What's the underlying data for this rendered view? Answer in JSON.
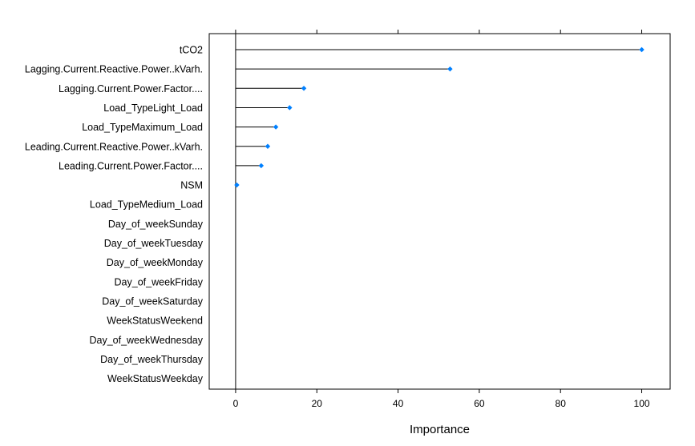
{
  "chart_data": {
    "type": "dot",
    "xlabel": "Importance",
    "xlim": [
      -6.5,
      107
    ],
    "xticks": [
      0,
      20,
      40,
      60,
      80,
      100
    ],
    "xtick_labels": [
      "0",
      "20",
      "40",
      "60",
      "80",
      "100"
    ],
    "colors": {
      "point": "#0080ff",
      "line": "#000000",
      "frame": "#000000"
    },
    "categories": [
      "tCO2",
      "Lagging.Current.Reactive.Power..kVarh.",
      "Lagging.Current.Power.Factor....",
      "Load_TypeLight_Load",
      "Load_TypeMaximum_Load",
      "Leading.Current.Reactive.Power..kVarh.",
      "Leading.Current.Power.Factor....",
      "NSM",
      "Load_TypeMedium_Load",
      "Day_of_weekSunday",
      "Day_of_weekTuesday",
      "Day_of_weekMonday",
      "Day_of_weekFriday",
      "Day_of_weekSaturday",
      "WeekStatusWeekend",
      "Day_of_weekWednesday",
      "Day_of_weekThursday",
      "WeekStatusWeekday"
    ],
    "values": [
      100,
      52.8,
      16.8,
      13.3,
      9.9,
      7.9,
      6.3,
      0.3,
      0,
      0,
      0,
      0,
      0,
      0,
      0,
      0,
      0,
      0
    ]
  }
}
